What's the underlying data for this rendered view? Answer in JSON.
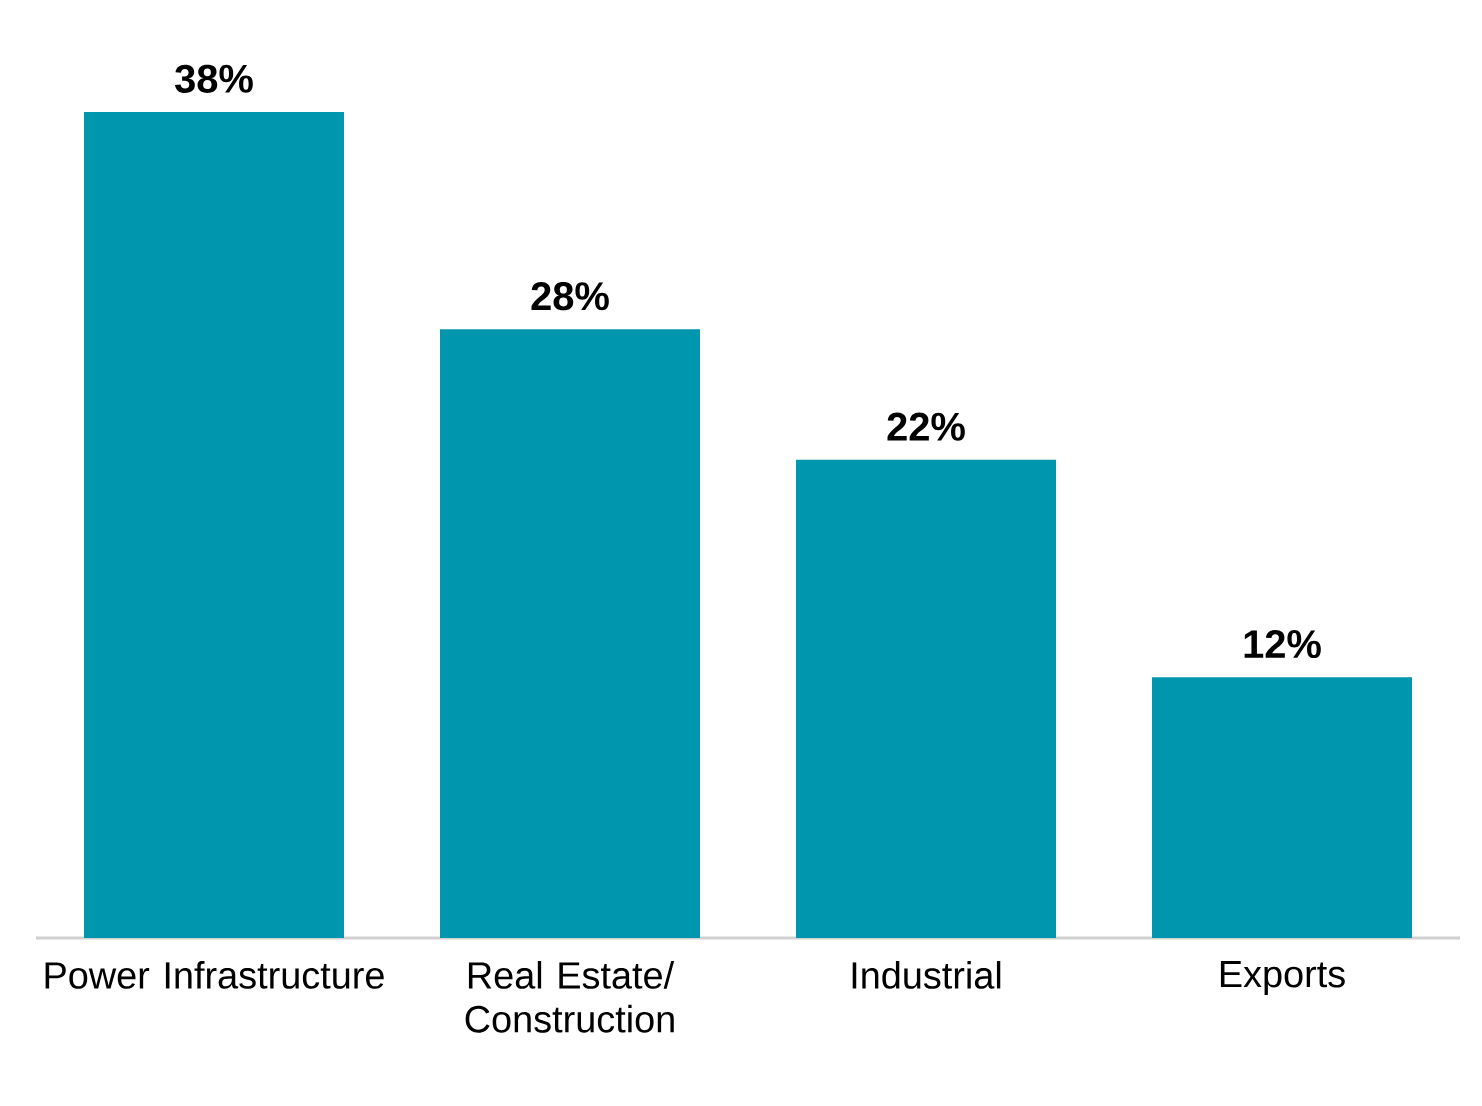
{
  "chart_data": {
    "type": "bar",
    "categories": [
      "Power Infrastructure",
      "Real Estate/ Construction",
      "Industrial",
      "Exports"
    ],
    "values": [
      38,
      28,
      22,
      12
    ],
    "value_labels": [
      "38%",
      "28%",
      "22%",
      "12%"
    ],
    "color": "#0097ae"
  }
}
